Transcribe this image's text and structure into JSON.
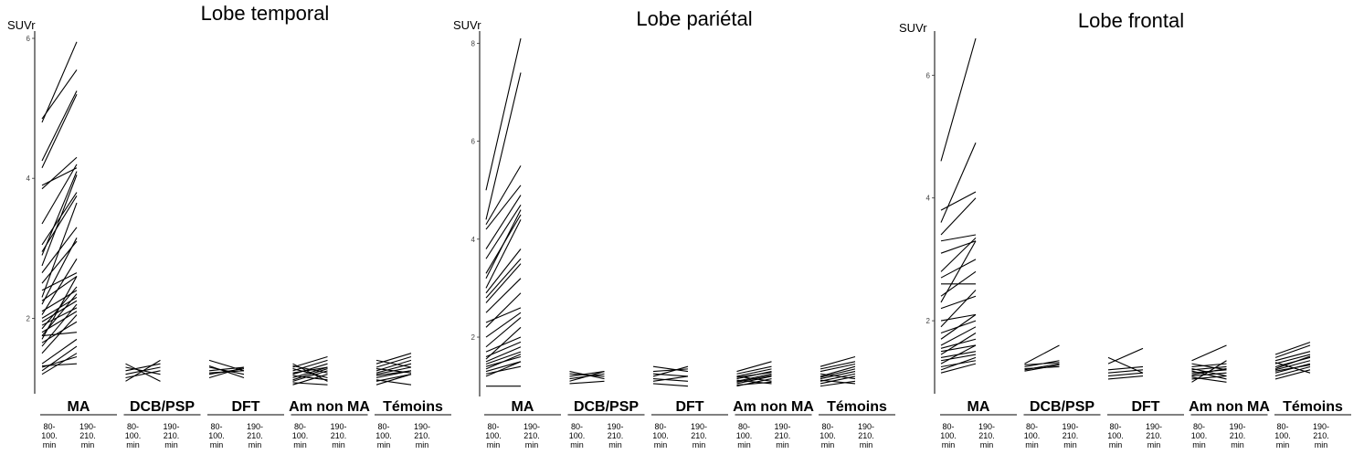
{
  "chart_data": [
    {
      "type": "line",
      "title": "Lobe temporal",
      "ylabel": "SUVr",
      "ylim": [
        1.0,
        6.0
      ],
      "yticks": [
        2,
        4,
        6
      ],
      "xticks": [
        "80-\n100.\nmin",
        "190-\n210.\nmin"
      ],
      "groups": [
        {
          "name": "MA",
          "pairs": [
            [
              4.85,
              5.55
            ],
            [
              4.8,
              5.95
            ],
            [
              4.25,
              5.25
            ],
            [
              4.15,
              5.2
            ],
            [
              3.85,
              4.3
            ],
            [
              3.9,
              4.15
            ],
            [
              3.35,
              4.2
            ],
            [
              3.05,
              3.8
            ],
            [
              2.95,
              3.75
            ],
            [
              2.9,
              4.1
            ],
            [
              2.75,
              4.05
            ],
            [
              2.65,
              3.3
            ],
            [
              2.5,
              3.1
            ],
            [
              2.4,
              2.65
            ],
            [
              2.3,
              3.65
            ],
            [
              2.25,
              2.6
            ],
            [
              2.2,
              3.15
            ],
            [
              2.1,
              2.4
            ],
            [
              2.05,
              2.85
            ],
            [
              2.0,
              2.3
            ],
            [
              1.95,
              2.25
            ],
            [
              1.9,
              2.15
            ],
            [
              1.85,
              2.45
            ],
            [
              1.8,
              2.1
            ],
            [
              1.75,
              2.35
            ],
            [
              1.75,
              1.8
            ],
            [
              1.7,
              2.6
            ],
            [
              1.65,
              1.95
            ],
            [
              1.6,
              2.2
            ],
            [
              1.5,
              2.05
            ],
            [
              1.35,
              1.7
            ],
            [
              1.3,
              1.45
            ],
            [
              1.25,
              1.6
            ],
            [
              1.32,
              1.35
            ],
            [
              1.2,
              1.5
            ]
          ]
        },
        {
          "name": "DCB/PSP",
          "pairs": [
            [
              1.3,
              1.2
            ],
            [
              1.25,
              1.35
            ],
            [
              1.2,
              1.3
            ],
            [
              1.15,
              1.25
            ],
            [
              1.1,
              1.4
            ],
            [
              1.35,
              1.1
            ]
          ]
        },
        {
          "name": "DFT",
          "pairs": [
            [
              1.4,
              1.25
            ],
            [
              1.3,
              1.2
            ],
            [
              1.25,
              1.3
            ],
            [
              1.2,
              1.28
            ],
            [
              1.15,
              1.3
            ],
            [
              1.32,
              1.15
            ],
            [
              1.22,
              1.25
            ]
          ]
        },
        {
          "name": "Am non MA",
          "pairs": [
            [
              1.3,
              1.45
            ],
            [
              1.25,
              1.4
            ],
            [
              1.2,
              1.35
            ],
            [
              1.15,
              1.3
            ],
            [
              1.1,
              1.25
            ],
            [
              1.05,
              1.2
            ],
            [
              1.35,
              1.1
            ],
            [
              1.28,
              1.15
            ],
            [
              1.22,
              1.3
            ],
            [
              1.18,
              1.12
            ],
            [
              1.12,
              1.28
            ],
            [
              1.08,
              1.05
            ],
            [
              1.32,
              1.22
            ]
          ]
        },
        {
          "name": "Témoins",
          "pairs": [
            [
              1.35,
              1.5
            ],
            [
              1.3,
              1.45
            ],
            [
              1.25,
              1.4
            ],
            [
              1.2,
              1.3
            ],
            [
              1.15,
              1.25
            ],
            [
              1.1,
              1.2
            ],
            [
              1.4,
              1.3
            ],
            [
              1.28,
              1.22
            ],
            [
              1.22,
              1.35
            ],
            [
              1.18,
              1.25
            ],
            [
              1.12,
              1.05
            ],
            [
              1.05,
              1.2
            ]
          ]
        }
      ]
    },
    {
      "type": "line",
      "title": "Lobe pariétal",
      "ylabel": "SUVr",
      "ylim": [
        0.9,
        8.1
      ],
      "yticks": [
        2,
        4,
        6,
        8
      ],
      "xticks": [
        "80-\n100.\nmin",
        "190-\n210.\nmin"
      ],
      "groups": [
        {
          "name": "MA",
          "pairs": [
            [
              5.0,
              8.1
            ],
            [
              4.4,
              7.4
            ],
            [
              4.3,
              5.5
            ],
            [
              4.2,
              5.1
            ],
            [
              3.8,
              4.9
            ],
            [
              3.6,
              4.7
            ],
            [
              3.3,
              4.5
            ],
            [
              3.2,
              4.6
            ],
            [
              3.0,
              4.4
            ],
            [
              2.9,
              3.8
            ],
            [
              2.8,
              3.6
            ],
            [
              2.7,
              3.5
            ],
            [
              2.5,
              3.2
            ],
            [
              2.3,
              2.6
            ],
            [
              2.2,
              2.9
            ],
            [
              2.0,
              2.5
            ],
            [
              1.8,
              2.4
            ],
            [
              1.7,
              2.0
            ],
            [
              1.6,
              1.9
            ],
            [
              1.55,
              2.2
            ],
            [
              1.5,
              1.8
            ],
            [
              1.45,
              1.7
            ],
            [
              1.4,
              1.6
            ],
            [
              1.35,
              1.65
            ],
            [
              1.3,
              1.5
            ],
            [
              1.25,
              1.4
            ],
            [
              1.2,
              1.5
            ],
            [
              1.0,
              1.0
            ]
          ]
        },
        {
          "name": "DCB/PSP",
          "pairs": [
            [
              1.25,
              1.2
            ],
            [
              1.2,
              1.3
            ],
            [
              1.15,
              1.25
            ],
            [
              1.1,
              1.3
            ],
            [
              1.3,
              1.15
            ],
            [
              1.05,
              1.1
            ]
          ]
        },
        {
          "name": "DFT",
          "pairs": [
            [
              1.4,
              1.3
            ],
            [
              1.3,
              1.35
            ],
            [
              1.25,
              1.2
            ],
            [
              1.2,
              1.4
            ],
            [
              1.15,
              1.1
            ],
            [
              1.1,
              1.2
            ],
            [
              1.05,
              1.0
            ]
          ]
        },
        {
          "name": "Am non MA",
          "pairs": [
            [
              1.3,
              1.5
            ],
            [
              1.25,
              1.4
            ],
            [
              1.2,
              1.35
            ],
            [
              1.15,
              1.3
            ],
            [
              1.1,
              1.25
            ],
            [
              1.05,
              1.2
            ],
            [
              1.0,
              1.15
            ],
            [
              1.2,
              1.1
            ],
            [
              1.12,
              1.05
            ],
            [
              1.08,
              1.22
            ],
            [
              1.18,
              1.28
            ],
            [
              1.02,
              1.08
            ]
          ]
        },
        {
          "name": "Témoins",
          "pairs": [
            [
              1.4,
              1.6
            ],
            [
              1.35,
              1.5
            ],
            [
              1.3,
              1.45
            ],
            [
              1.2,
              1.4
            ],
            [
              1.15,
              1.3
            ],
            [
              1.1,
              1.25
            ],
            [
              1.05,
              1.2
            ],
            [
              1.25,
              1.15
            ],
            [
              1.0,
              1.1
            ],
            [
              1.18,
              1.35
            ],
            [
              1.12,
              1.05
            ]
          ]
        }
      ]
    },
    {
      "type": "line",
      "title": "Lobe frontal",
      "ylabel": "SUVr",
      "ylim": [
        0.9,
        6.6
      ],
      "yticks": [
        2,
        4,
        6
      ],
      "xticks": [
        "80-\n100.\nmin",
        "190-\n210.\nmin"
      ],
      "groups": [
        {
          "name": "MA",
          "pairs": [
            [
              4.6,
              6.6
            ],
            [
              3.8,
              4.1
            ],
            [
              3.6,
              4.9
            ],
            [
              3.4,
              4.0
            ],
            [
              3.3,
              3.4
            ],
            [
              3.1,
              3.3
            ],
            [
              2.8,
              3.35
            ],
            [
              2.7,
              3.0
            ],
            [
              2.6,
              2.6
            ],
            [
              2.4,
              2.8
            ],
            [
              2.3,
              3.3
            ],
            [
              2.2,
              2.4
            ],
            [
              2.0,
              2.1
            ],
            [
              1.9,
              2.5
            ],
            [
              1.8,
              2.0
            ],
            [
              1.7,
              2.1
            ],
            [
              1.6,
              1.9
            ],
            [
              1.55,
              1.7
            ],
            [
              1.5,
              1.6
            ],
            [
              1.45,
              1.8
            ],
            [
              1.4,
              1.5
            ],
            [
              1.35,
              1.45
            ],
            [
              1.3,
              1.6
            ],
            [
              1.25,
              1.35
            ],
            [
              1.2,
              1.4
            ],
            [
              1.15,
              1.3
            ]
          ]
        },
        {
          "name": "DCB/PSP",
          "pairs": [
            [
              1.3,
              1.6
            ],
            [
              1.28,
              1.32
            ],
            [
              1.25,
              1.35
            ],
            [
              1.22,
              1.25
            ],
            [
              1.2,
              1.3
            ],
            [
              1.18,
              1.28
            ]
          ]
        },
        {
          "name": "DFT",
          "pairs": [
            [
              1.4,
              1.15
            ],
            [
              1.3,
              1.55
            ],
            [
              1.2,
              1.25
            ],
            [
              1.15,
              1.2
            ],
            [
              1.1,
              1.15
            ],
            [
              1.05,
              1.1
            ]
          ]
        },
        {
          "name": "Am non MA",
          "pairs": [
            [
              1.35,
              1.6
            ],
            [
              1.3,
              1.2
            ],
            [
              1.25,
              1.3
            ],
            [
              1.2,
              1.25
            ],
            [
              1.15,
              1.2
            ],
            [
              1.1,
              1.15
            ],
            [
              1.05,
              1.1
            ],
            [
              1.0,
              1.35
            ],
            [
              1.18,
              1.05
            ],
            [
              1.12,
              1.22
            ],
            [
              1.08,
              1.0
            ],
            [
              1.22,
              1.1
            ]
          ]
        },
        {
          "name": "Témoins",
          "pairs": [
            [
              1.45,
              1.65
            ],
            [
              1.4,
              1.6
            ],
            [
              1.35,
              1.5
            ],
            [
              1.3,
              1.45
            ],
            [
              1.25,
              1.4
            ],
            [
              1.2,
              1.35
            ],
            [
              1.15,
              1.3
            ],
            [
              1.1,
              1.25
            ],
            [
              1.05,
              1.2
            ],
            [
              1.32,
              1.15
            ],
            [
              1.22,
              1.42
            ],
            [
              1.18,
              1.28
            ]
          ]
        }
      ]
    }
  ]
}
